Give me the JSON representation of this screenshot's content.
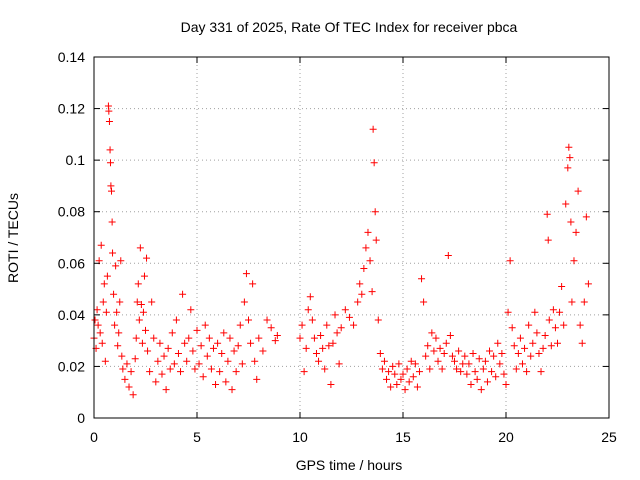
{
  "chart_data": {
    "type": "scatter",
    "title": "Day 331 of 2025, Rate Of TEC Index for receiver pbca",
    "xlabel": "GPS time / hours",
    "ylabel": "ROTI / TECUs",
    "xlim": [
      0,
      25
    ],
    "ylim": [
      0,
      0.14
    ],
    "xticks": [
      0,
      5,
      10,
      15,
      20,
      25
    ],
    "xtick_labels": [
      "0",
      "5",
      "10",
      "15",
      "20",
      "25"
    ],
    "yticks": [
      0,
      0.02,
      0.04,
      0.06,
      0.08,
      0.1,
      0.12,
      0.14
    ],
    "ytick_labels": [
      "0",
      "0.02",
      "0.04",
      "0.06",
      "0.08",
      "0.1",
      "0.12",
      "0.14"
    ],
    "grid": true,
    "marker": "plus",
    "color": "#ff0000",
    "series": [
      {
        "name": "ROTI",
        "points": [
          [
            0.0,
            0.031
          ],
          [
            0.05,
            0.038
          ],
          [
            0.1,
            0.027
          ],
          [
            0.15,
            0.042
          ],
          [
            0.2,
            0.036
          ],
          [
            0.25,
            0.061
          ],
          [
            0.3,
            0.033
          ],
          [
            0.35,
            0.067
          ],
          [
            0.4,
            0.029
          ],
          [
            0.45,
            0.045
          ],
          [
            0.5,
            0.052
          ],
          [
            0.55,
            0.022
          ],
          [
            0.6,
            0.041
          ],
          [
            0.65,
            0.055
          ],
          [
            0.7,
            0.121
          ],
          [
            0.72,
            0.119
          ],
          [
            0.75,
            0.115
          ],
          [
            0.78,
            0.104
          ],
          [
            0.8,
            0.099
          ],
          [
            0.82,
            0.09
          ],
          [
            0.85,
            0.088
          ],
          [
            0.88,
            0.076
          ],
          [
            0.9,
            0.064
          ],
          [
            0.95,
            0.048
          ],
          [
            1.0,
            0.036
          ],
          [
            1.05,
            0.059
          ],
          [
            1.1,
            0.041
          ],
          [
            1.15,
            0.028
          ],
          [
            1.2,
            0.033
          ],
          [
            1.25,
            0.045
          ],
          [
            1.3,
            0.061
          ],
          [
            1.35,
            0.024
          ],
          [
            1.4,
            0.019
          ],
          [
            1.5,
            0.015
          ],
          [
            1.6,
            0.021
          ],
          [
            1.7,
            0.012
          ],
          [
            1.8,
            0.018
          ],
          [
            1.9,
            0.009
          ],
          [
            2.0,
            0.023
          ],
          [
            2.05,
            0.031
          ],
          [
            2.1,
            0.045
          ],
          [
            2.15,
            0.052
          ],
          [
            2.2,
            0.038
          ],
          [
            2.25,
            0.066
          ],
          [
            2.3,
            0.044
          ],
          [
            2.35,
            0.029
          ],
          [
            2.4,
            0.041
          ],
          [
            2.45,
            0.055
          ],
          [
            2.5,
            0.034
          ],
          [
            2.55,
            0.062
          ],
          [
            2.6,
            0.026
          ],
          [
            2.7,
            0.018
          ],
          [
            2.8,
            0.045
          ],
          [
            2.9,
            0.031
          ],
          [
            3.0,
            0.014
          ],
          [
            3.1,
            0.022
          ],
          [
            3.2,
            0.029
          ],
          [
            3.3,
            0.017
          ],
          [
            3.4,
            0.024
          ],
          [
            3.5,
            0.011
          ],
          [
            3.6,
            0.027
          ],
          [
            3.7,
            0.019
          ],
          [
            3.8,
            0.033
          ],
          [
            3.9,
            0.021
          ],
          [
            4.0,
            0.038
          ],
          [
            4.1,
            0.025
          ],
          [
            4.2,
            0.018
          ],
          [
            4.3,
            0.048
          ],
          [
            4.4,
            0.029
          ],
          [
            4.5,
            0.022
          ],
          [
            4.6,
            0.031
          ],
          [
            4.7,
            0.042
          ],
          [
            4.8,
            0.026
          ],
          [
            4.9,
            0.019
          ],
          [
            5.0,
            0.034
          ],
          [
            5.1,
            0.021
          ],
          [
            5.2,
            0.028
          ],
          [
            5.3,
            0.016
          ],
          [
            5.4,
            0.036
          ],
          [
            5.5,
            0.024
          ],
          [
            5.6,
            0.031
          ],
          [
            5.7,
            0.019
          ],
          [
            5.8,
            0.027
          ],
          [
            5.9,
            0.013
          ],
          [
            6.0,
            0.029
          ],
          [
            6.1,
            0.018
          ],
          [
            6.2,
            0.025
          ],
          [
            6.3,
            0.033
          ],
          [
            6.4,
            0.014
          ],
          [
            6.5,
            0.022
          ],
          [
            6.6,
            0.031
          ],
          [
            6.7,
            0.011
          ],
          [
            6.8,
            0.026
          ],
          [
            6.9,
            0.018
          ],
          [
            7.0,
            0.028
          ],
          [
            7.1,
            0.036
          ],
          [
            7.2,
            0.021
          ],
          [
            7.3,
            0.045
          ],
          [
            7.4,
            0.056
          ],
          [
            7.5,
            0.038
          ],
          [
            7.6,
            0.029
          ],
          [
            7.7,
            0.052
          ],
          [
            7.8,
            0.022
          ],
          [
            7.9,
            0.015
          ],
          [
            8.0,
            0.031
          ],
          [
            8.2,
            0.026
          ],
          [
            8.4,
            0.038
          ],
          [
            8.6,
            0.035
          ],
          [
            8.8,
            0.03
          ],
          [
            8.9,
            0.032
          ],
          [
            10.0,
            0.031
          ],
          [
            10.1,
            0.036
          ],
          [
            10.2,
            0.018
          ],
          [
            10.3,
            0.027
          ],
          [
            10.4,
            0.042
          ],
          [
            10.5,
            0.047
          ],
          [
            10.6,
            0.038
          ],
          [
            10.7,
            0.031
          ],
          [
            10.8,
            0.025
          ],
          [
            10.9,
            0.022
          ],
          [
            11.0,
            0.032
          ],
          [
            11.1,
            0.027
          ],
          [
            11.2,
            0.019
          ],
          [
            11.3,
            0.036
          ],
          [
            11.4,
            0.028
          ],
          [
            11.5,
            0.013
          ],
          [
            11.6,
            0.029
          ],
          [
            11.7,
            0.04
          ],
          [
            11.8,
            0.033
          ],
          [
            11.9,
            0.021
          ],
          [
            12.0,
            0.035
          ],
          [
            12.2,
            0.042
          ],
          [
            12.4,
            0.039
          ],
          [
            12.6,
            0.036
          ],
          [
            12.8,
            0.045
          ],
          [
            12.9,
            0.052
          ],
          [
            13.0,
            0.048
          ],
          [
            13.1,
            0.058
          ],
          [
            13.2,
            0.066
          ],
          [
            13.3,
            0.072
          ],
          [
            13.4,
            0.061
          ],
          [
            13.5,
            0.049
          ],
          [
            13.55,
            0.112
          ],
          [
            13.6,
            0.099
          ],
          [
            13.65,
            0.08
          ],
          [
            13.7,
            0.069
          ],
          [
            13.8,
            0.038
          ],
          [
            13.9,
            0.025
          ],
          [
            14.0,
            0.019
          ],
          [
            14.1,
            0.022
          ],
          [
            14.2,
            0.015
          ],
          [
            14.3,
            0.018
          ],
          [
            14.4,
            0.012
          ],
          [
            14.5,
            0.02
          ],
          [
            14.6,
            0.017
          ],
          [
            14.7,
            0.013
          ],
          [
            14.8,
            0.021
          ],
          [
            14.9,
            0.015
          ],
          [
            15.0,
            0.017
          ],
          [
            15.1,
            0.011
          ],
          [
            15.2,
            0.019
          ],
          [
            15.3,
            0.014
          ],
          [
            15.4,
            0.022
          ],
          [
            15.5,
            0.016
          ],
          [
            15.6,
            0.021
          ],
          [
            15.7,
            0.012
          ],
          [
            15.8,
            0.018
          ],
          [
            15.9,
            0.054
          ],
          [
            16.0,
            0.045
          ],
          [
            16.1,
            0.024
          ],
          [
            16.2,
            0.028
          ],
          [
            16.3,
            0.019
          ],
          [
            16.4,
            0.033
          ],
          [
            16.5,
            0.026
          ],
          [
            16.6,
            0.031
          ],
          [
            16.7,
            0.022
          ],
          [
            16.8,
            0.027
          ],
          [
            16.9,
            0.019
          ],
          [
            17.0,
            0.025
          ],
          [
            17.1,
            0.029
          ],
          [
            17.2,
            0.063
          ],
          [
            17.3,
            0.032
          ],
          [
            17.4,
            0.024
          ],
          [
            17.5,
            0.022
          ],
          [
            17.6,
            0.019
          ],
          [
            17.7,
            0.026
          ],
          [
            17.8,
            0.018
          ],
          [
            17.9,
            0.021
          ],
          [
            18.0,
            0.024
          ],
          [
            18.1,
            0.017
          ],
          [
            18.2,
            0.021
          ],
          [
            18.3,
            0.013
          ],
          [
            18.4,
            0.025
          ],
          [
            18.5,
            0.018
          ],
          [
            18.6,
            0.015
          ],
          [
            18.7,
            0.023
          ],
          [
            18.8,
            0.011
          ],
          [
            18.9,
            0.019
          ],
          [
            19.0,
            0.022
          ],
          [
            19.1,
            0.014
          ],
          [
            19.2,
            0.026
          ],
          [
            19.3,
            0.018
          ],
          [
            19.4,
            0.024
          ],
          [
            19.5,
            0.016
          ],
          [
            19.6,
            0.029
          ],
          [
            19.7,
            0.021
          ],
          [
            19.8,
            0.025
          ],
          [
            19.9,
            0.017
          ],
          [
            20.0,
            0.013
          ],
          [
            20.1,
            0.041
          ],
          [
            20.2,
            0.061
          ],
          [
            20.3,
            0.035
          ],
          [
            20.4,
            0.028
          ],
          [
            20.5,
            0.019
          ],
          [
            20.6,
            0.025
          ],
          [
            20.7,
            0.031
          ],
          [
            20.8,
            0.021
          ],
          [
            20.9,
            0.027
          ],
          [
            21.0,
            0.018
          ],
          [
            21.1,
            0.036
          ],
          [
            21.2,
            0.024
          ],
          [
            21.3,
            0.029
          ],
          [
            21.4,
            0.041
          ],
          [
            21.5,
            0.033
          ],
          [
            21.6,
            0.025
          ],
          [
            21.7,
            0.018
          ],
          [
            21.8,
            0.027
          ],
          [
            21.9,
            0.032
          ],
          [
            22.0,
            0.079
          ],
          [
            22.05,
            0.069
          ],
          [
            22.1,
            0.038
          ],
          [
            22.2,
            0.028
          ],
          [
            22.3,
            0.042
          ],
          [
            22.4,
            0.035
          ],
          [
            22.5,
            0.029
          ],
          [
            22.6,
            0.041
          ],
          [
            22.7,
            0.051
          ],
          [
            22.8,
            0.036
          ],
          [
            22.9,
            0.083
          ],
          [
            23.0,
            0.097
          ],
          [
            23.05,
            0.105
          ],
          [
            23.1,
            0.101
          ],
          [
            23.15,
            0.076
          ],
          [
            23.2,
            0.045
          ],
          [
            23.3,
            0.061
          ],
          [
            23.4,
            0.072
          ],
          [
            23.5,
            0.088
          ],
          [
            23.6,
            0.036
          ],
          [
            23.7,
            0.029
          ],
          [
            23.8,
            0.045
          ],
          [
            23.9,
            0.078
          ],
          [
            24.0,
            0.052
          ]
        ]
      }
    ]
  }
}
